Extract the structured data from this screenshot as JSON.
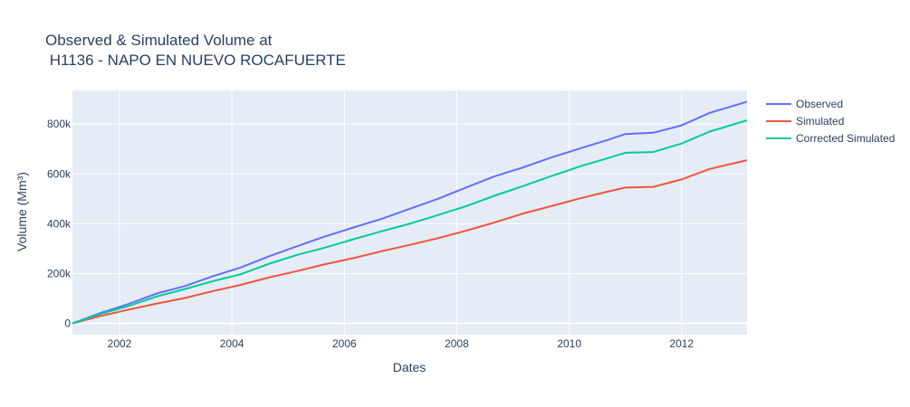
{
  "chart_data": {
    "type": "line",
    "title_line1": "Observed & Simulated Volume at",
    "title_line2": " H1136 - NAPO EN NUEVO ROCAFUERTE",
    "xlabel": "Dates",
    "ylabel": "Volume (Mm³)",
    "xlim": [
      "2001-03-01",
      "2013-03-01"
    ],
    "ylim": [
      -45000,
      935000
    ],
    "x_ticks": [
      "2002",
      "2004",
      "2006",
      "2008",
      "2010",
      "2012"
    ],
    "y_ticks": [
      {
        "value": 0,
        "label": "0"
      },
      {
        "value": 200000,
        "label": "200k"
      },
      {
        "value": 400000,
        "label": "400k"
      },
      {
        "value": 600000,
        "label": "600k"
      },
      {
        "value": 800000,
        "label": "800k"
      }
    ],
    "grid": true,
    "legend_position": "top-right",
    "series": [
      {
        "name": "Observed",
        "color": "#636efa",
        "x": [
          "2001-03-01",
          "2001-09-01",
          "2002-03-01",
          "2002-09-01",
          "2003-03-01",
          "2003-09-01",
          "2004-03-01",
          "2004-09-01",
          "2005-03-01",
          "2005-09-01",
          "2006-03-01",
          "2006-09-01",
          "2007-03-01",
          "2007-09-01",
          "2008-03-01",
          "2008-09-01",
          "2009-03-01",
          "2009-09-01",
          "2010-03-01",
          "2010-09-01",
          "2011-01-01",
          "2011-07-01",
          "2012-01-01",
          "2012-07-01",
          "2013-03-01"
        ],
        "y": [
          0,
          42000,
          78000,
          120000,
          150000,
          190000,
          225000,
          270000,
          310000,
          350000,
          385000,
          420000,
          460000,
          500000,
          545000,
          590000,
          625000,
          665000,
          700000,
          735000,
          760000,
          765000,
          795000,
          845000,
          890000
        ]
      },
      {
        "name": "Simulated",
        "color": "#ef553b",
        "x": [
          "2001-03-01",
          "2001-09-01",
          "2002-03-01",
          "2002-09-01",
          "2003-03-01",
          "2003-09-01",
          "2004-03-01",
          "2004-09-01",
          "2005-03-01",
          "2005-09-01",
          "2006-03-01",
          "2006-09-01",
          "2007-03-01",
          "2007-09-01",
          "2008-03-01",
          "2008-09-01",
          "2009-03-01",
          "2009-09-01",
          "2010-03-01",
          "2010-09-01",
          "2011-01-01",
          "2011-07-01",
          "2012-01-01",
          "2012-07-01",
          "2013-03-01"
        ],
        "y": [
          0,
          30000,
          55000,
          80000,
          102000,
          130000,
          155000,
          185000,
          210000,
          238000,
          262000,
          290000,
          315000,
          342000,
          372000,
          405000,
          440000,
          470000,
          500000,
          528000,
          545000,
          548000,
          578000,
          620000,
          655000
        ]
      },
      {
        "name": "Corrected Simulated",
        "color": "#00cc96",
        "x": [
          "2001-03-01",
          "2001-09-01",
          "2002-03-01",
          "2002-09-01",
          "2003-03-01",
          "2003-09-01",
          "2004-03-01",
          "2004-09-01",
          "2005-03-01",
          "2005-09-01",
          "2006-03-01",
          "2006-09-01",
          "2007-03-01",
          "2007-09-01",
          "2008-03-01",
          "2008-09-01",
          "2009-03-01",
          "2009-09-01",
          "2010-03-01",
          "2010-09-01",
          "2011-01-01",
          "2011-07-01",
          "2012-01-01",
          "2012-07-01",
          "2013-03-01"
        ],
        "y": [
          0,
          38000,
          70000,
          108000,
          138000,
          170000,
          198000,
          240000,
          275000,
          305000,
          338000,
          370000,
          400000,
          435000,
          470000,
          512000,
          550000,
          590000,
          628000,
          662000,
          685000,
          688000,
          722000,
          770000,
          815000
        ]
      }
    ]
  }
}
